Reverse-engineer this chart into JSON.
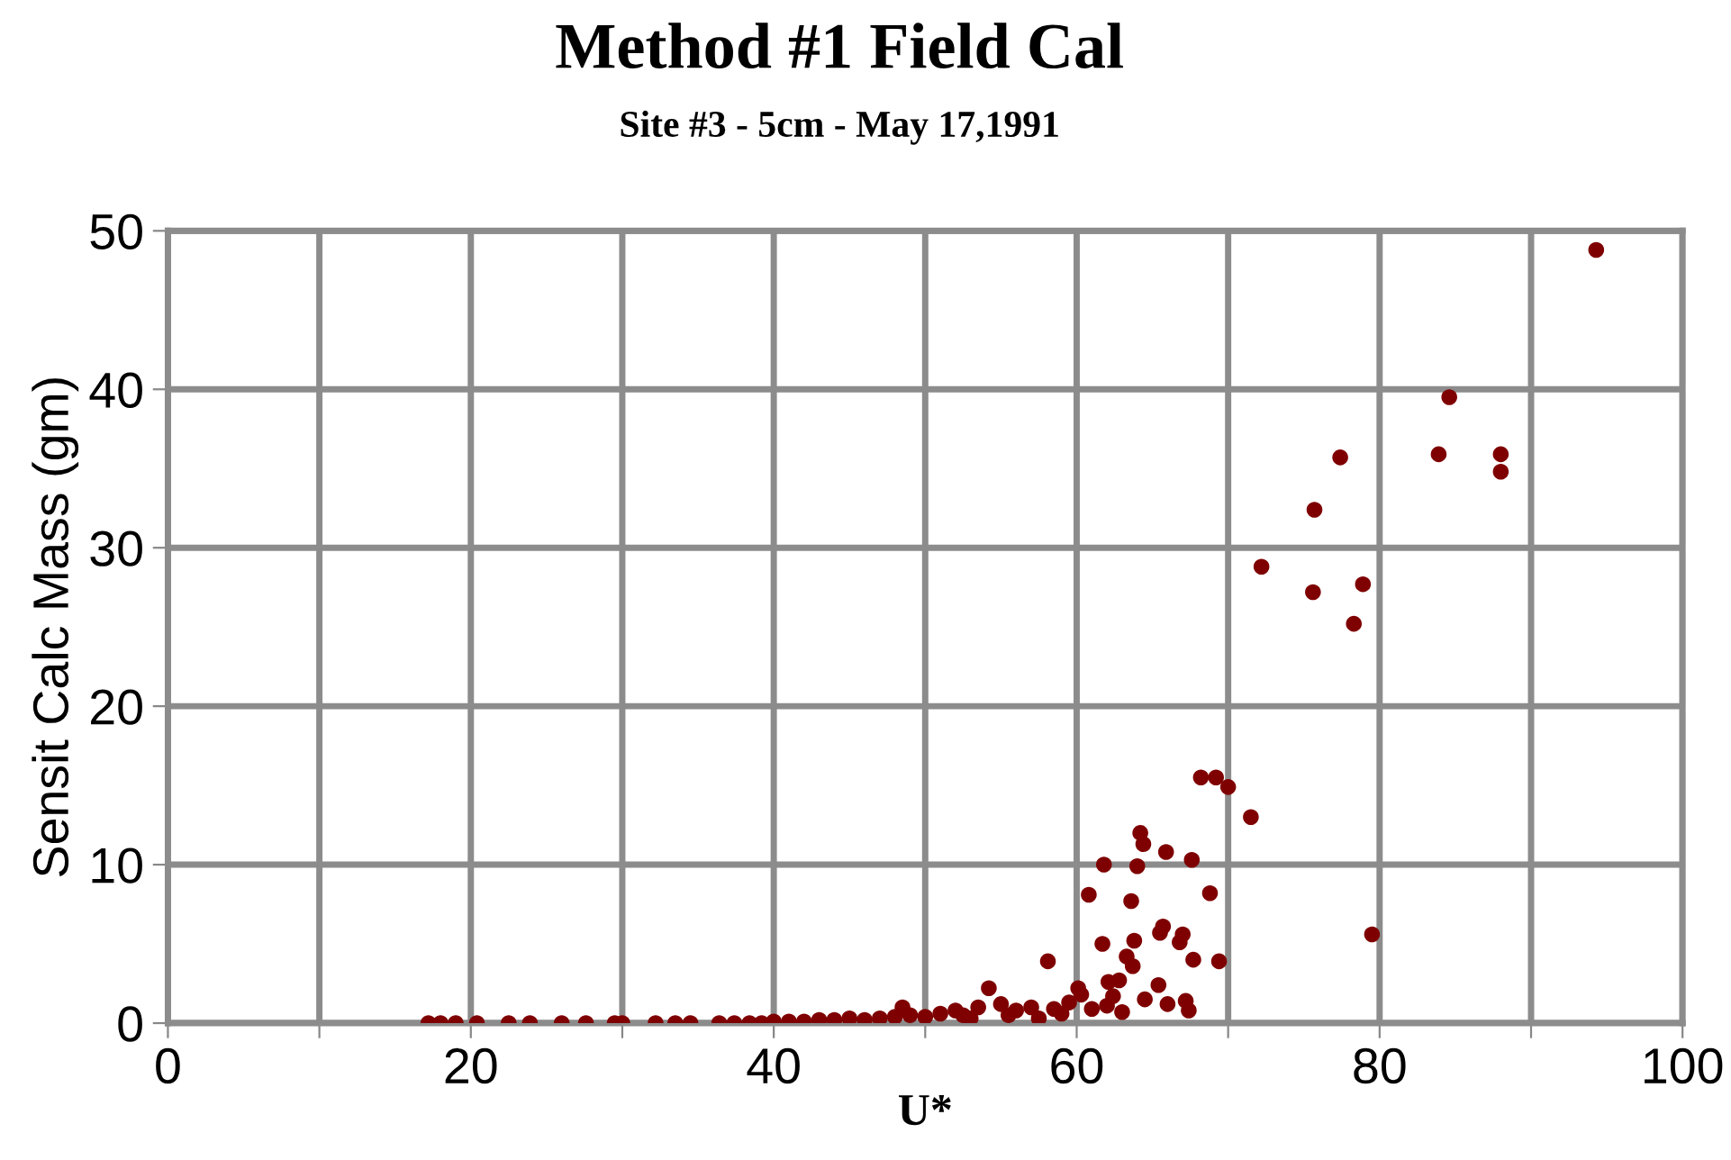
{
  "chart_data": {
    "type": "scatter",
    "title": "Method #1 Field Cal",
    "subtitle": "Site #3 - 5cm - May 17,1991",
    "xlabel": "U*",
    "ylabel": "Sensit Calc Mass (gm)",
    "series": [
      {
        "color": "#7f0000",
        "x": [
          17.2,
          18.0,
          19.0,
          20.4,
          22.5,
          23.9,
          26.0,
          27.6,
          29.5,
          30.0,
          32.2,
          33.5,
          34.5,
          36.4,
          37.4,
          38.4,
          39.2,
          40.0,
          41.0,
          42.0,
          43.0,
          44.0,
          45.0,
          46.0,
          47.0,
          48.0,
          49.0,
          50.0,
          51.0,
          52.0,
          52.5,
          53.5,
          54.2,
          55.0,
          56.0,
          57.0,
          58.1,
          58.5,
          59.5,
          60.1,
          60.3,
          60.8,
          61.7,
          61.8,
          62.1,
          62.4,
          62.8,
          63.3,
          63.6,
          63.7,
          63.8,
          64.0,
          64.2,
          64.4,
          65.4,
          65.5,
          65.7,
          65.9,
          66.0,
          66.8,
          67.0,
          67.2,
          67.4,
          67.6,
          67.7,
          68.2,
          68.8,
          69.2,
          69.4,
          70.0,
          71.5,
          72.2,
          75.6,
          75.7,
          77.4,
          78.3,
          78.9,
          79.5,
          83.9,
          84.6,
          88.0,
          88.0,
          94.3,
          55.5,
          57.5,
          59.0,
          61.0,
          62.0,
          63.0,
          64.5,
          48.5,
          53.0
        ],
        "values": [
          0,
          0,
          0,
          0,
          0,
          0,
          0,
          0,
          0,
          0,
          0,
          0,
          0,
          0,
          0,
          0,
          0,
          0.1,
          0.1,
          0.1,
          0.2,
          0.2,
          0.3,
          0.2,
          0.3,
          0.4,
          0.5,
          0.4,
          0.6,
          0.8,
          0.5,
          1.0,
          2.2,
          1.2,
          0.8,
          1.0,
          3.9,
          0.9,
          1.3,
          2.2,
          1.8,
          8.1,
          5.0,
          10.0,
          2.6,
          1.7,
          2.7,
          4.2,
          7.7,
          3.6,
          5.2,
          9.9,
          12.0,
          11.3,
          2.4,
          5.7,
          6.1,
          10.8,
          1.2,
          5.1,
          5.6,
          1.4,
          0.8,
          10.3,
          4.0,
          15.5,
          8.2,
          15.5,
          3.9,
          14.9,
          13.0,
          28.8,
          27.2,
          32.4,
          35.7,
          25.2,
          27.7,
          5.6,
          35.9,
          39.5,
          35.9,
          34.8,
          48.8,
          0.5,
          0.3,
          0.6,
          0.9,
          1.1,
          0.7,
          1.5,
          1.0,
          0.3
        ]
      }
    ],
    "xlim": [
      0,
      100
    ],
    "xticks": [
      0,
      {
        "value": 10,
        "label": null
      },
      20,
      {
        "value": 30,
        "label": null
      },
      40,
      {
        "value": 50,
        "label": null
      },
      60,
      {
        "value": 70,
        "label": null
      },
      80,
      {
        "value": 90,
        "label": null
      },
      100
    ],
    "ylim": [
      0,
      50
    ],
    "yticks": [
      0,
      10,
      20,
      30,
      40,
      50
    ],
    "grid": true,
    "marker": "circle"
  }
}
